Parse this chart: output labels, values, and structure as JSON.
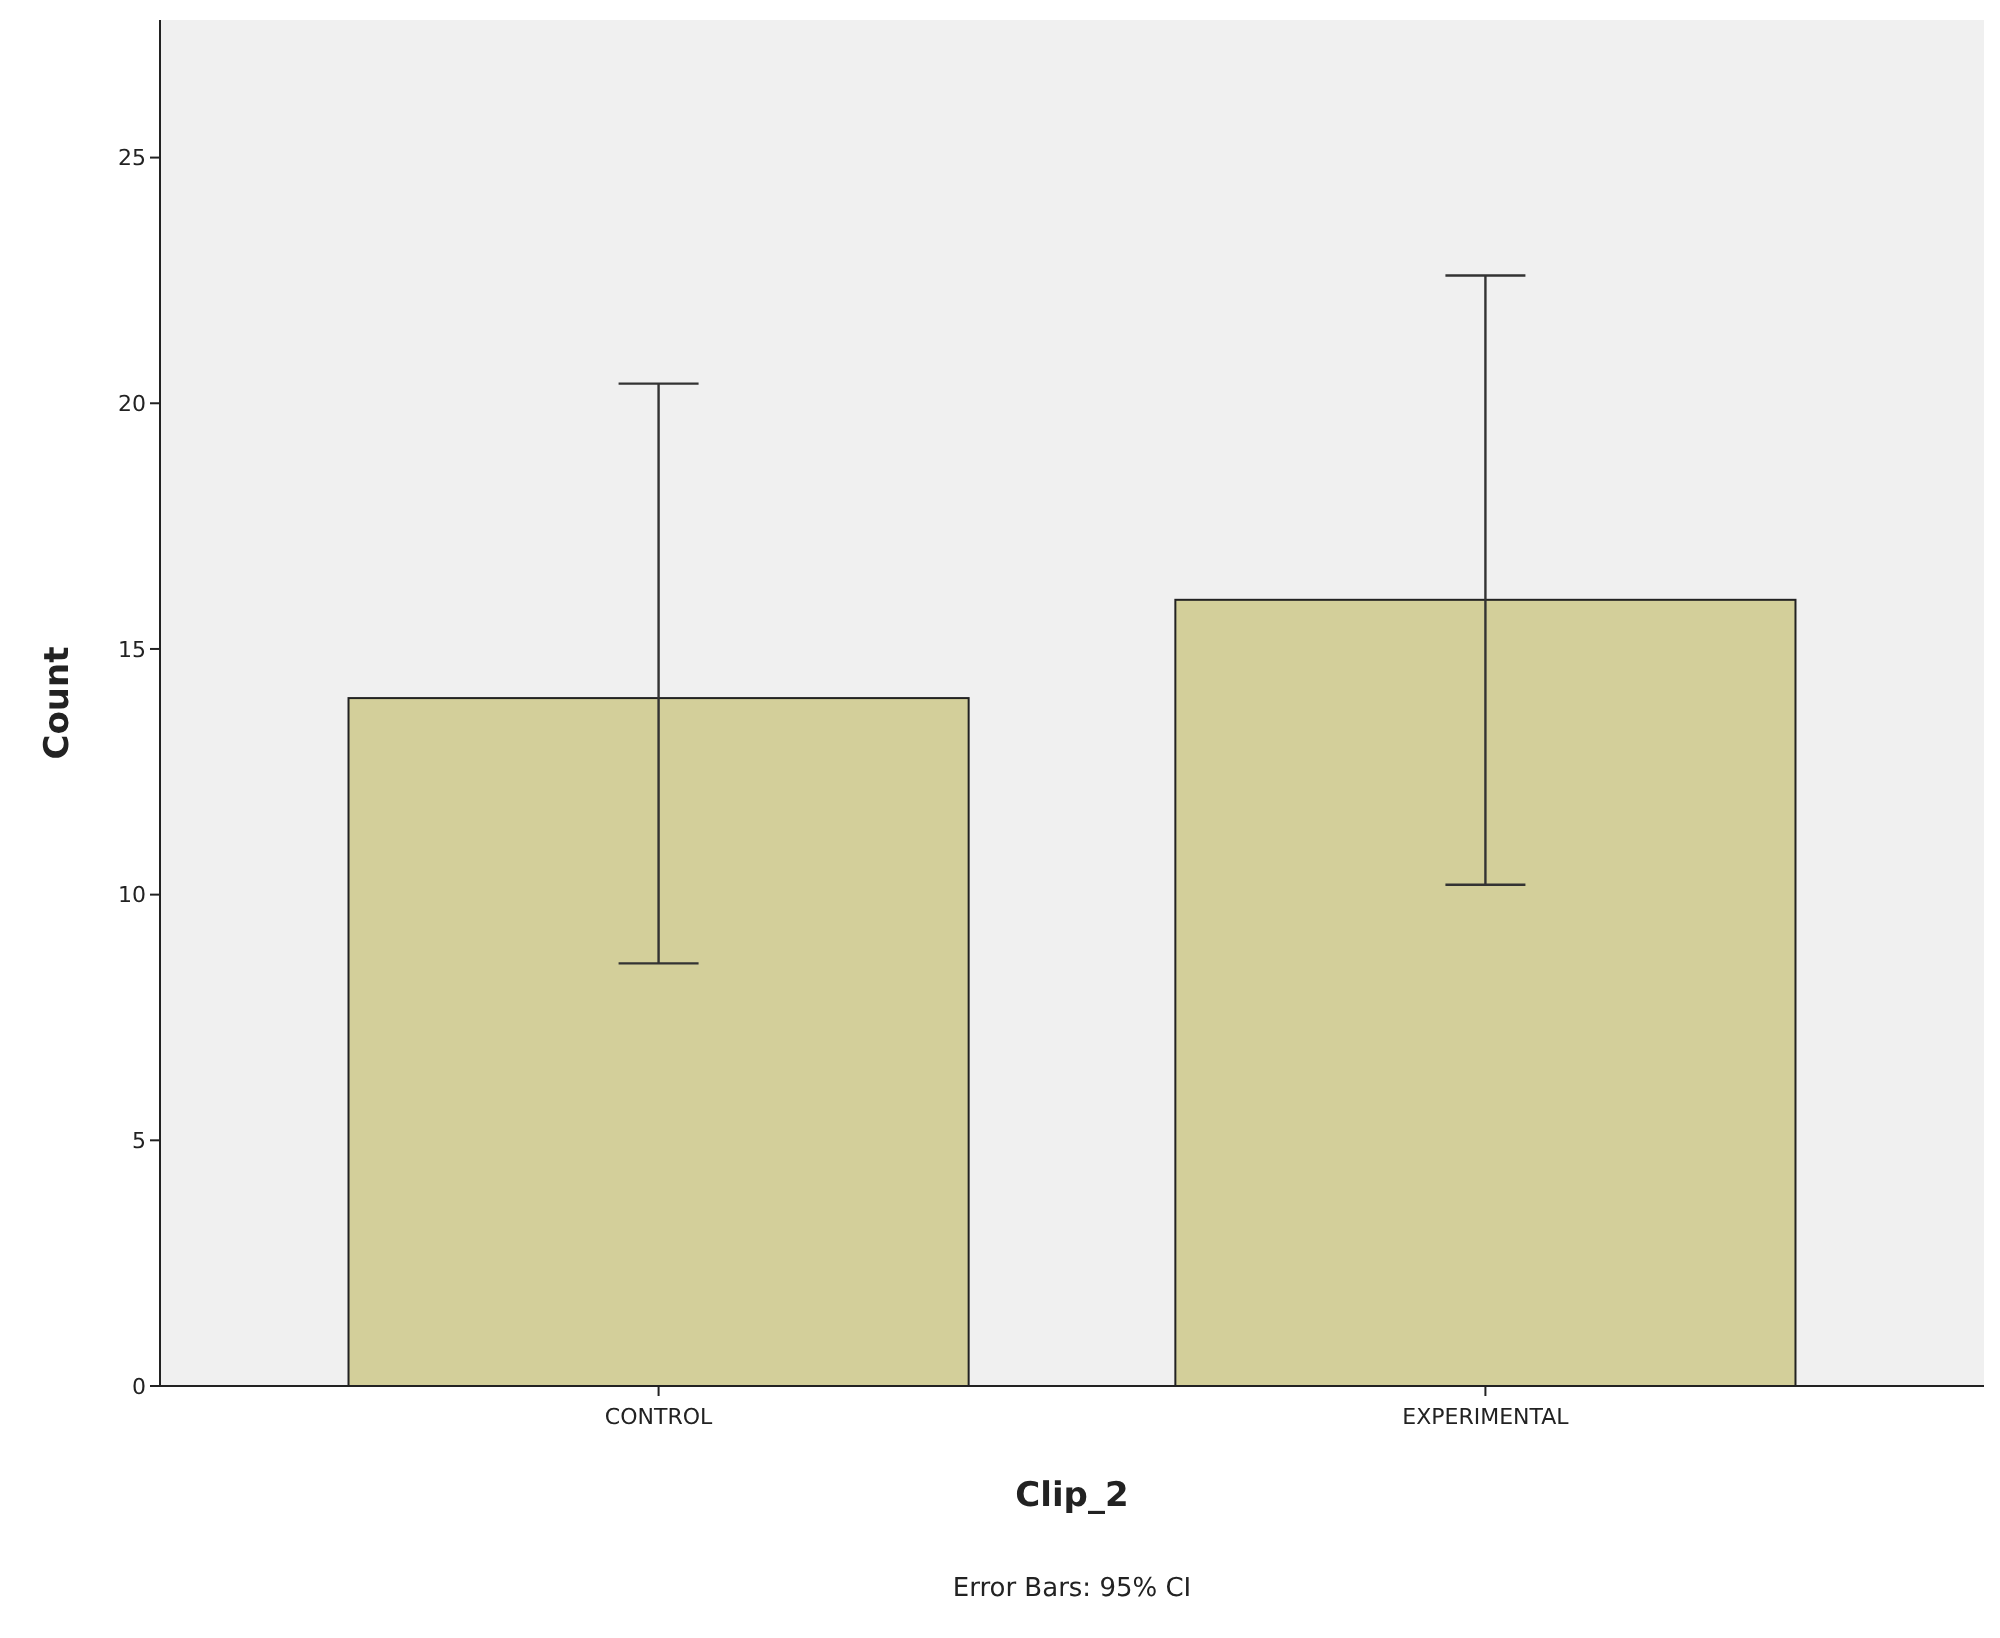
{
  "chart_data": {
    "type": "bar",
    "xlabel": "Clip_2",
    "ylabel": "Count",
    "categories": [
      "CONTROL",
      "EXPERIMENTAL"
    ],
    "values": [
      14,
      16
    ],
    "errors": [
      [
        8.6,
        20.4
      ],
      [
        10.2,
        22.6
      ]
    ],
    "color": "#d3cf9a",
    "ylim": [
      0,
      27.8
    ],
    "yticks": [
      0,
      5,
      10,
      15,
      20,
      25
    ],
    "annotations": [
      "Error Bars: 95% CI"
    ]
  }
}
